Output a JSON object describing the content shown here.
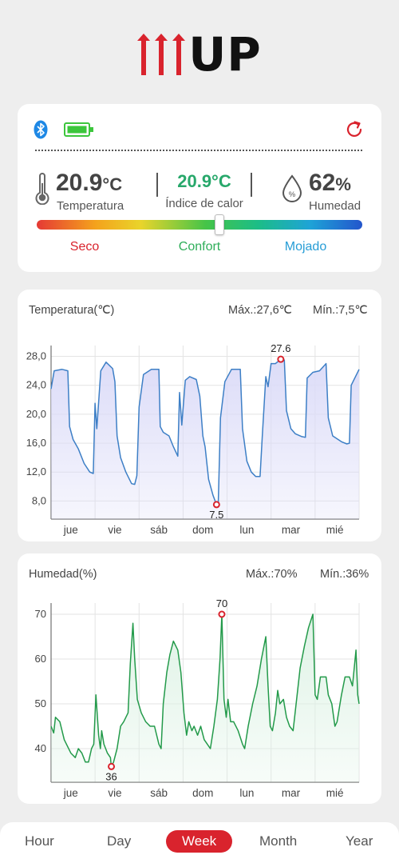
{
  "logo": {
    "text": "UP"
  },
  "status": {
    "temperature": {
      "value": "20.9",
      "unit": "°C",
      "label": "Temperatura"
    },
    "heat_index": {
      "value": "20.9°C",
      "label": "Índice de calor"
    },
    "humidity": {
      "value": "62",
      "unit": "%",
      "label": "Humedad"
    },
    "comfort_scale": {
      "dry": "Seco",
      "comfort": "Confort",
      "wet": "Mojado",
      "level": 0.56
    }
  },
  "tabs": [
    {
      "label": "Hour"
    },
    {
      "label": "Day"
    },
    {
      "label": "Week",
      "active": true
    },
    {
      "label": "Month"
    },
    {
      "label": "Year"
    }
  ],
  "chart_data": [
    {
      "type": "line",
      "title": "Temperatura(℃)",
      "max_label": "Máx.:27,6℃",
      "min_label": "Mín.:7,5℃",
      "x_ticks": [
        "jue",
        "vie",
        "sáb",
        "dom",
        "lun",
        "mar",
        "mié"
      ],
      "y_ticks": [
        "28,0",
        "24,0",
        "20,0",
        "16,0",
        "12,0",
        "8,0"
      ],
      "ylim": [
        5.5,
        29.5
      ],
      "xlim": [
        0,
        7
      ],
      "color": "#3d7fc6",
      "fill": "#dcdcf8",
      "max_point": {
        "x": 5.22,
        "y": 27.6,
        "label": "27.6"
      },
      "min_point": {
        "x": 3.76,
        "y": 7.5,
        "label": "7.5"
      },
      "series": [
        {
          "values": [
            [
              0,
              23.5
            ],
            [
              0.07,
              26
            ],
            [
              0.25,
              26.2
            ],
            [
              0.38,
              26
            ],
            [
              0.42,
              18.3
            ],
            [
              0.5,
              16.5
            ],
            [
              0.62,
              15.2
            ],
            [
              0.75,
              13.2
            ],
            [
              0.88,
              12
            ],
            [
              0.96,
              11.8
            ],
            [
              1.0,
              21.5
            ],
            [
              1.04,
              18
            ],
            [
              1.13,
              26
            ],
            [
              1.25,
              27.2
            ],
            [
              1.4,
              26.3
            ],
            [
              1.45,
              24.5
            ],
            [
              1.5,
              17
            ],
            [
              1.58,
              14
            ],
            [
              1.7,
              12
            ],
            [
              1.83,
              10.4
            ],
            [
              1.9,
              10.3
            ],
            [
              1.95,
              11.5
            ],
            [
              2.0,
              21
            ],
            [
              2.1,
              25.5
            ],
            [
              2.28,
              26.2
            ],
            [
              2.45,
              26.2
            ],
            [
              2.48,
              18.3
            ],
            [
              2.55,
              17.5
            ],
            [
              2.68,
              17
            ],
            [
              2.78,
              15.5
            ],
            [
              2.88,
              14.2
            ],
            [
              2.92,
              23
            ],
            [
              2.97,
              18.5
            ],
            [
              3.05,
              24.7
            ],
            [
              3.15,
              25.2
            ],
            [
              3.3,
              24.8
            ],
            [
              3.38,
              22.5
            ],
            [
              3.45,
              17
            ],
            [
              3.5,
              15.5
            ],
            [
              3.58,
              11
            ],
            [
              3.68,
              8.8
            ],
            [
              3.76,
              7.5
            ],
            [
              3.8,
              7.6
            ],
            [
              3.85,
              19.5
            ],
            [
              3.95,
              24.5
            ],
            [
              4.1,
              26.2
            ],
            [
              4.3,
              26.2
            ],
            [
              4.35,
              18
            ],
            [
              4.45,
              13.5
            ],
            [
              4.55,
              12
            ],
            [
              4.65,
              11.4
            ],
            [
              4.75,
              11.4
            ],
            [
              4.8,
              17
            ],
            [
              4.88,
              25.2
            ],
            [
              4.93,
              23.8
            ],
            [
              5.0,
              27
            ],
            [
              5.1,
              27
            ],
            [
              5.22,
              27.6
            ],
            [
              5.3,
              27.5
            ],
            [
              5.35,
              20.5
            ],
            [
              5.45,
              18
            ],
            [
              5.55,
              17.3
            ],
            [
              5.7,
              16.9
            ],
            [
              5.78,
              16.8
            ],
            [
              5.82,
              25
            ],
            [
              5.95,
              25.8
            ],
            [
              6.1,
              26
            ],
            [
              6.25,
              27
            ],
            [
              6.3,
              19.5
            ],
            [
              6.4,
              17
            ],
            [
              6.6,
              16.2
            ],
            [
              6.72,
              15.9
            ],
            [
              6.78,
              16
            ],
            [
              6.82,
              24
            ],
            [
              7.0,
              26.2
            ]
          ]
        }
      ]
    },
    {
      "type": "line",
      "title": "Humedad(%)",
      "max_label": "Máx.:70%",
      "min_label": "Mín.:36%",
      "x_ticks": [
        "jue",
        "vie",
        "sáb",
        "dom",
        "lun",
        "mar",
        "mié"
      ],
      "y_ticks": [
        "70",
        "60",
        "50",
        "40"
      ],
      "ylim": [
        32.5,
        72.5
      ],
      "xlim": [
        0,
        7
      ],
      "color": "#239a4a",
      "fill": "#dff3e6",
      "max_point": {
        "x": 3.88,
        "y": 70,
        "label": "70"
      },
      "min_point": {
        "x": 1.37,
        "y": 36,
        "label": "36"
      },
      "series": [
        {
          "values": [
            [
              0,
              45
            ],
            [
              0.06,
              43.5
            ],
            [
              0.1,
              47
            ],
            [
              0.2,
              46
            ],
            [
              0.3,
              42
            ],
            [
              0.45,
              39
            ],
            [
              0.55,
              38
            ],
            [
              0.62,
              40
            ],
            [
              0.7,
              39
            ],
            [
              0.78,
              37
            ],
            [
              0.85,
              37
            ],
            [
              0.92,
              40
            ],
            [
              0.97,
              41
            ],
            [
              1.02,
              52
            ],
            [
              1.08,
              43
            ],
            [
              1.12,
              40
            ],
            [
              1.15,
              44
            ],
            [
              1.2,
              41
            ],
            [
              1.28,
              39
            ],
            [
              1.35,
              38
            ],
            [
              1.37,
              36
            ],
            [
              1.42,
              37
            ],
            [
              1.5,
              40
            ],
            [
              1.58,
              45
            ],
            [
              1.65,
              46
            ],
            [
              1.75,
              48
            ],
            [
              1.8,
              59
            ],
            [
              1.86,
              68
            ],
            [
              1.9,
              60
            ],
            [
              1.96,
              51
            ],
            [
              2.05,
              48
            ],
            [
              2.15,
              46
            ],
            [
              2.25,
              45
            ],
            [
              2.35,
              45
            ],
            [
              2.45,
              41
            ],
            [
              2.5,
              40
            ],
            [
              2.55,
              50
            ],
            [
              2.63,
              57
            ],
            [
              2.7,
              61
            ],
            [
              2.78,
              64
            ],
            [
              2.88,
              62
            ],
            [
              2.95,
              57
            ],
            [
              3.02,
              48
            ],
            [
              3.08,
              43
            ],
            [
              3.13,
              46
            ],
            [
              3.2,
              44
            ],
            [
              3.25,
              45
            ],
            [
              3.33,
              43
            ],
            [
              3.4,
              45
            ],
            [
              3.48,
              42
            ],
            [
              3.55,
              41
            ],
            [
              3.62,
              40
            ],
            [
              3.7,
              45
            ],
            [
              3.78,
              51
            ],
            [
              3.84,
              60
            ],
            [
              3.88,
              70
            ],
            [
              3.93,
              51
            ],
            [
              3.98,
              47
            ],
            [
              4.02,
              51
            ],
            [
              4.08,
              46
            ],
            [
              4.15,
              46
            ],
            [
              4.25,
              44
            ],
            [
              4.35,
              41
            ],
            [
              4.4,
              40
            ],
            [
              4.48,
              45
            ],
            [
              4.58,
              50
            ],
            [
              4.68,
              54
            ],
            [
              4.78,
              60
            ],
            [
              4.88,
              65
            ],
            [
              4.93,
              54
            ],
            [
              4.98,
              45
            ],
            [
              5.03,
              44
            ],
            [
              5.1,
              48
            ],
            [
              5.15,
              53
            ],
            [
              5.2,
              50
            ],
            [
              5.28,
              51
            ],
            [
              5.35,
              47
            ],
            [
              5.42,
              45
            ],
            [
              5.5,
              44
            ],
            [
              5.58,
              51
            ],
            [
              5.66,
              58
            ],
            [
              5.76,
              63
            ],
            [
              5.85,
              67
            ],
            [
              5.95,
              70
            ],
            [
              6.0,
              52
            ],
            [
              6.05,
              51
            ],
            [
              6.12,
              56
            ],
            [
              6.25,
              56
            ],
            [
              6.3,
              52
            ],
            [
              6.38,
              50
            ],
            [
              6.45,
              45
            ],
            [
              6.5,
              46
            ],
            [
              6.6,
              52
            ],
            [
              6.68,
              56
            ],
            [
              6.78,
              56
            ],
            [
              6.85,
              54
            ],
            [
              6.93,
              62
            ],
            [
              6.97,
              52
            ],
            [
              7.0,
              50
            ]
          ]
        }
      ]
    }
  ]
}
